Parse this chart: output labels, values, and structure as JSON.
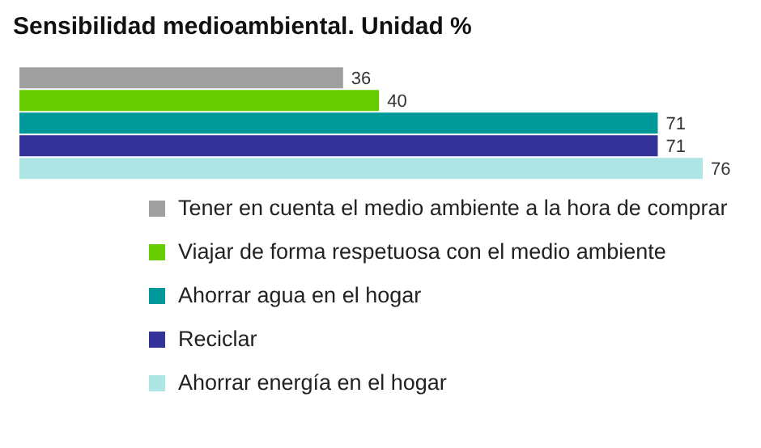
{
  "chart_data": {
    "type": "bar",
    "orientation": "horizontal",
    "title": "Sensibilidad medioambiental. Unidad %",
    "categories": [
      null
    ],
    "series": [
      {
        "name": "Tener en cuenta el medio ambiente a la hora de comprar",
        "color": "#a0a0a0",
        "values": [
          36
        ]
      },
      {
        "name": "Viajar de forma respetuosa con el medio ambiente",
        "color": "#66cc00",
        "values": [
          40
        ]
      },
      {
        "name": "Ahorrar agua en el hogar",
        "color": "#009999",
        "values": [
          71
        ]
      },
      {
        "name": "Reciclar",
        "color": "#333399",
        "values": [
          71
        ]
      },
      {
        "name": "Ahorrar energía en el hogar",
        "color": "#aee6e6",
        "values": [
          76
        ]
      }
    ],
    "data_labels": true,
    "legend": "bottom",
    "grid": false
  }
}
